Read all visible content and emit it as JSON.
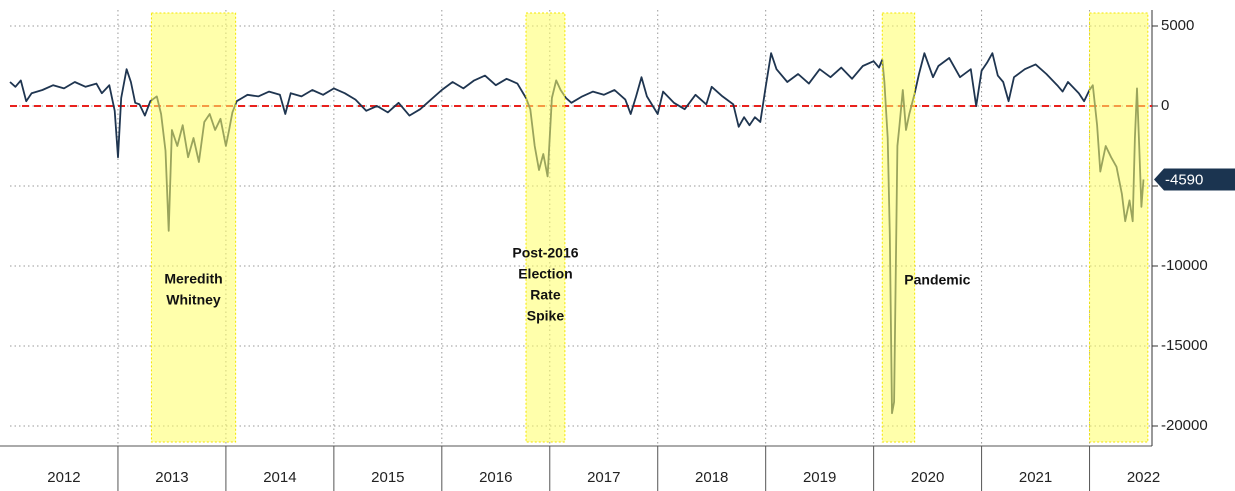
{
  "chart_data": {
    "type": "line",
    "x": [
      2012.0,
      2012.05,
      2012.1,
      2012.15,
      2012.2,
      2012.3,
      2012.4,
      2012.5,
      2012.6,
      2012.7,
      2012.8,
      2012.85,
      2012.92,
      2012.97,
      2013.0,
      2013.03,
      2013.08,
      2013.12,
      2013.16,
      2013.2,
      2013.25,
      2013.3,
      2013.36,
      2013.4,
      2013.44,
      2013.47,
      2013.5,
      2013.55,
      2013.6,
      2013.65,
      2013.7,
      2013.75,
      2013.8,
      2013.85,
      2013.9,
      2013.95,
      2014.0,
      2014.03,
      2014.06,
      2014.1,
      2014.15,
      2014.2,
      2014.3,
      2014.4,
      2014.5,
      2014.55,
      2014.6,
      2014.7,
      2014.8,
      2014.9,
      2015.0,
      2015.1,
      2015.2,
      2015.3,
      2015.4,
      2015.5,
      2015.6,
      2015.7,
      2015.8,
      2015.9,
      2016.0,
      2016.1,
      2016.2,
      2016.3,
      2016.4,
      2016.5,
      2016.6,
      2016.7,
      2016.78,
      2016.82,
      2016.86,
      2016.9,
      2016.94,
      2016.98,
      2017.02,
      2017.06,
      2017.1,
      2017.15,
      2017.2,
      2017.3,
      2017.4,
      2017.5,
      2017.6,
      2017.7,
      2017.75,
      2017.8,
      2017.85,
      2017.9,
      2018.0,
      2018.05,
      2018.15,
      2018.25,
      2018.35,
      2018.45,
      2018.5,
      2018.6,
      2018.7,
      2018.75,
      2018.8,
      2018.85,
      2018.9,
      2018.95,
      2019.0,
      2019.05,
      2019.1,
      2019.2,
      2019.3,
      2019.4,
      2019.5,
      2019.6,
      2019.7,
      2019.8,
      2019.9,
      2020.0,
      2020.05,
      2020.08,
      2020.1,
      2020.13,
      2020.15,
      2020.17,
      2020.19,
      2020.22,
      2020.24,
      2020.27,
      2020.3,
      2020.33,
      2020.38,
      2020.42,
      2020.47,
      2020.55,
      2020.6,
      2020.7,
      2020.8,
      2020.9,
      2020.95,
      2021.0,
      2021.05,
      2021.1,
      2021.15,
      2021.2,
      2021.25,
      2021.3,
      2021.4,
      2021.5,
      2021.6,
      2021.7,
      2021.75,
      2021.8,
      2021.9,
      2021.95,
      2022.0,
      2022.03,
      2022.07,
      2022.1,
      2022.15,
      2022.2,
      2022.25,
      2022.3,
      2022.33,
      2022.37,
      2022.4,
      2022.42,
      2022.44,
      2022.46,
      2022.48,
      2022.5
    ],
    "series": [
      {
        "color": "#1f3550",
        "values": [
          1500,
          1200,
          1600,
          300,
          800,
          1000,
          1300,
          1100,
          1500,
          1200,
          1400,
          800,
          1300,
          -300,
          -3200,
          500,
          2300,
          1500,
          200,
          100,
          -600,
          300,
          600,
          -500,
          -2800,
          -7800,
          -1500,
          -2500,
          -1200,
          -3200,
          -2000,
          -3500,
          -1000,
          -500,
          -1500,
          -800,
          -2500,
          -1500,
          -400,
          300,
          500,
          700,
          600,
          900,
          700,
          -500,
          800,
          600,
          1000,
          700,
          1100,
          800,
          400,
          -300,
          0,
          -400,
          200,
          -600,
          -200,
          400,
          1000,
          1500,
          1100,
          1600,
          1900,
          1300,
          1700,
          1400,
          500,
          -200,
          -2500,
          -4000,
          -3000,
          -4400,
          500,
          1600,
          1000,
          500,
          200,
          600,
          900,
          700,
          1000,
          400,
          -500,
          600,
          1800,
          600,
          -500,
          900,
          200,
          -200,
          700,
          100,
          1200,
          600,
          100,
          -1300,
          -700,
          -1200,
          -700,
          -1000,
          1200,
          3300,
          2300,
          1500,
          2000,
          1400,
          2300,
          1800,
          2400,
          1700,
          2500,
          2800,
          2400,
          2900,
          1500,
          -2000,
          -8000,
          -19200,
          -18500,
          -2500,
          -1200,
          1000,
          -1500,
          -500,
          800,
          2000,
          3300,
          1800,
          2500,
          3000,
          1800,
          2300,
          0,
          2200,
          2700,
          3300,
          1900,
          1500,
          300,
          1800,
          2300,
          2600,
          2000,
          1300,
          900,
          1500,
          800,
          300,
          1000,
          1300,
          -1200,
          -4100,
          -2500,
          -3200,
          -3800,
          -5500,
          -7200,
          -5900,
          -7200,
          -2000,
          1100,
          -2500,
          -6300,
          -4590
        ]
      }
    ],
    "last_value": -4590,
    "reference_line": {
      "value": 0,
      "color": "#e8211d"
    },
    "xlim": [
      2012,
      2022.56
    ],
    "xticks": [
      {
        "value": 2012.5,
        "label": "2012"
      },
      {
        "value": 2013.5,
        "label": "2013"
      },
      {
        "value": 2014.5,
        "label": "2014"
      },
      {
        "value": 2015.5,
        "label": "2015"
      },
      {
        "value": 2016.5,
        "label": "2016"
      },
      {
        "value": 2017.5,
        "label": "2017"
      },
      {
        "value": 2018.5,
        "label": "2018"
      },
      {
        "value": 2019.5,
        "label": "2019"
      },
      {
        "value": 2020.5,
        "label": "2020"
      },
      {
        "value": 2021.5,
        "label": "2021"
      },
      {
        "value": 2022.5,
        "label": "2022"
      }
    ],
    "ylim": [
      -21000,
      6000
    ],
    "yticks": [
      5000,
      0,
      -5000,
      -10000,
      -15000,
      -20000
    ],
    "grid": true,
    "shaded_regions": [
      {
        "start": 2013.31,
        "end": 2014.09,
        "label": [
          "Meredith",
          "Whitney"
        ]
      },
      {
        "start": 2016.78,
        "end": 2017.14,
        "label": [
          "Post-2016",
          "Election",
          "Rate",
          "Spike"
        ]
      },
      {
        "start": 2020.08,
        "end": 2020.38,
        "label": [
          "Pandemic"
        ]
      },
      {
        "start": 2022.0,
        "end": 2022.54
      }
    ],
    "shade_color": "#ffff66"
  }
}
